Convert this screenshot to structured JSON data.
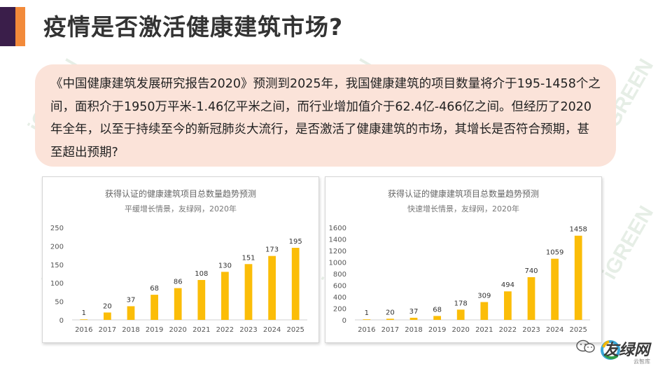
{
  "header": {
    "title": "疫情是否激活健康建筑市场?"
  },
  "quote": {
    "text": "《中国健康建筑发展研究报告2020》预测到2025年，我国健康建筑的项目数量将介于195-1458个之间，面积介于1950万平米-1.46亿平米之间，而行业增加值介于62.4亿-466亿之间。但经历了2020年全年，以至于持续至今的新冠肺炎大流行，是否激活了健康建筑的市场，其增长是否符合预期，甚至超出预期?"
  },
  "watermark": {
    "text": "iGREEN",
    "tag": "友绿 智库"
  },
  "logo": {
    "name": "友绿网",
    "sub": "云智库"
  },
  "colors": {
    "bar": "#fbbd08",
    "accent": "#f28a3a",
    "dark": "#3a1e4a"
  },
  "chart_data": [
    {
      "type": "bar",
      "title": "获得认证的健康建筑项目总数量趋势预测",
      "subtitle": "平缓增长情景，友绿网，2020年",
      "categories": [
        "2016",
        "2017",
        "2018",
        "2019",
        "2020",
        "2021",
        "2022",
        "2023",
        "2024",
        "2025"
      ],
      "values": [
        1,
        20,
        37,
        68,
        86,
        108,
        130,
        151,
        173,
        195
      ],
      "ylim": [
        0,
        250
      ],
      "yticks": [
        "0",
        "50",
        "100",
        "150",
        "200",
        "250"
      ],
      "grid": false
    },
    {
      "type": "bar",
      "title": "获得认证的健康建筑项目总数量趋势预测",
      "subtitle": "快速增长情景，友绿网，2020年",
      "categories": [
        "2016",
        "2017",
        "2018",
        "2019",
        "2020",
        "2021",
        "2022",
        "2023",
        "2024",
        "2025"
      ],
      "values": [
        1,
        20,
        37,
        68,
        178,
        309,
        494,
        740,
        1059,
        1458
      ],
      "ylim": [
        0,
        1600
      ],
      "yticks": [
        "0",
        "200",
        "400",
        "600",
        "800",
        "1000",
        "1200",
        "1400",
        "1600"
      ],
      "grid": false
    }
  ]
}
